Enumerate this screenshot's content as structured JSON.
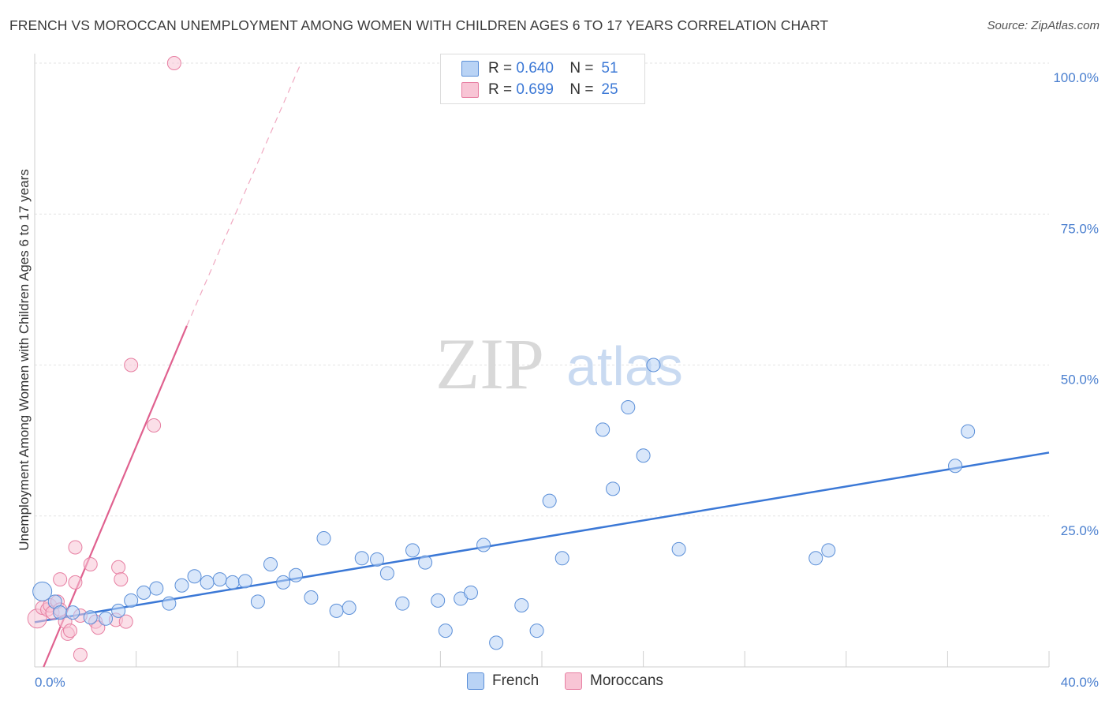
{
  "title": "FRENCH VS MOROCCAN UNEMPLOYMENT AMONG WOMEN WITH CHILDREN AGES 6 TO 17 YEARS CORRELATION CHART",
  "source": "Source: ZipAtlas.com",
  "watermark": {
    "part1": "ZIP",
    "part2": "atlas"
  },
  "legend": {
    "rows": [
      {
        "r_label": "R =",
        "r_value": "0.640",
        "n_label": "N =",
        "n_value": "51",
        "fill": "#b9d3f5",
        "stroke": "#5b8fd8"
      },
      {
        "r_label": "R =",
        "r_value": "0.699",
        "n_label": "N =",
        "n_value": "25",
        "fill": "#f8c5d5",
        "stroke": "#e77fa2"
      }
    ]
  },
  "bottom_legend": [
    {
      "label": "French",
      "fill": "#b9d3f5",
      "stroke": "#5b8fd8"
    },
    {
      "label": "Moroccans",
      "fill": "#f8c5d5",
      "stroke": "#e77fa2"
    }
  ],
  "chart_data": {
    "type": "scatter",
    "title": "FRENCH VS MOROCCAN UNEMPLOYMENT AMONG WOMEN WITH CHILDREN AGES 6 TO 17 YEARS CORRELATION CHART",
    "xlabel": "",
    "ylabel": "Unemployment Among Women with Children Ages 6 to 17 years",
    "xlim": [
      0,
      40
    ],
    "ylim": [
      0,
      100
    ],
    "x_tick_labels": [
      "0.0%",
      "40.0%"
    ],
    "y_ticks": [
      25,
      50,
      75,
      100
    ],
    "y_tick_labels": [
      "25.0%",
      "50.0%",
      "75.0%",
      "100.0%"
    ],
    "grid": true,
    "colors": {
      "french": "#3b78d6",
      "moroccans": "#e0618f"
    },
    "series": [
      {
        "name": "French",
        "r": 0.64,
        "n": 51,
        "trend": {
          "x": [
            0,
            40
          ],
          "y": [
            7.4,
            35.5
          ]
        },
        "points": [
          [
            0.3,
            12.5
          ],
          [
            0.8,
            10.8
          ],
          [
            1.0,
            9.0
          ],
          [
            1.5,
            9.0
          ],
          [
            2.2,
            8.2
          ],
          [
            2.8,
            8.0
          ],
          [
            3.3,
            9.3
          ],
          [
            3.8,
            11.0
          ],
          [
            4.3,
            12.3
          ],
          [
            4.8,
            13.0
          ],
          [
            5.3,
            10.5
          ],
          [
            5.8,
            13.5
          ],
          [
            6.3,
            15.0
          ],
          [
            6.8,
            14.0
          ],
          [
            7.3,
            14.5
          ],
          [
            7.8,
            14.0
          ],
          [
            8.3,
            14.2
          ],
          [
            8.8,
            10.8
          ],
          [
            9.3,
            17.0
          ],
          [
            9.8,
            14.0
          ],
          [
            10.3,
            15.2
          ],
          [
            10.9,
            11.5
          ],
          [
            11.4,
            21.3
          ],
          [
            11.9,
            9.3
          ],
          [
            12.4,
            9.8
          ],
          [
            12.9,
            18.0
          ],
          [
            13.5,
            17.8
          ],
          [
            13.9,
            15.5
          ],
          [
            14.5,
            10.5
          ],
          [
            14.9,
            19.3
          ],
          [
            15.4,
            17.3
          ],
          [
            15.9,
            11.0
          ],
          [
            16.2,
            6.0
          ],
          [
            16.8,
            11.3
          ],
          [
            17.2,
            12.3
          ],
          [
            17.7,
            20.2
          ],
          [
            18.2,
            4.0
          ],
          [
            19.2,
            10.2
          ],
          [
            19.8,
            6.0
          ],
          [
            20.3,
            27.5
          ],
          [
            20.8,
            18.0
          ],
          [
            22.4,
            39.3
          ],
          [
            22.8,
            29.5
          ],
          [
            23.4,
            43.0
          ],
          [
            24.0,
            35.0
          ],
          [
            24.4,
            50.0
          ],
          [
            25.4,
            19.5
          ],
          [
            30.8,
            18.0
          ],
          [
            31.3,
            19.3
          ],
          [
            36.3,
            33.3
          ],
          [
            36.8,
            39.0
          ]
        ]
      },
      {
        "name": "Moroccans",
        "r": 0.699,
        "n": 25,
        "trend": {
          "x": [
            0.35,
            6.0
          ],
          "y": [
            0.0,
            56.5
          ]
        },
        "trend_extension": {
          "x": [
            6.0,
            10.5
          ],
          "y": [
            56.5,
            100
          ]
        },
        "points": [
          [
            0.1,
            8.0
          ],
          [
            0.3,
            9.8
          ],
          [
            0.5,
            9.5
          ],
          [
            0.6,
            10.2
          ],
          [
            0.7,
            9.0
          ],
          [
            0.9,
            10.8
          ],
          [
            1.0,
            9.5
          ],
          [
            1.0,
            14.5
          ],
          [
            1.2,
            7.5
          ],
          [
            1.3,
            5.5
          ],
          [
            1.4,
            6.0
          ],
          [
            1.6,
            14.0
          ],
          [
            1.6,
            19.8
          ],
          [
            1.8,
            2.0
          ],
          [
            1.8,
            8.5
          ],
          [
            2.2,
            17.0
          ],
          [
            2.4,
            7.5
          ],
          [
            2.5,
            6.5
          ],
          [
            3.2,
            7.8
          ],
          [
            3.3,
            16.5
          ],
          [
            3.4,
            14.5
          ],
          [
            3.6,
            7.5
          ],
          [
            3.8,
            50.0
          ],
          [
            4.7,
            40.0
          ],
          [
            5.5,
            100.0
          ]
        ]
      }
    ]
  }
}
